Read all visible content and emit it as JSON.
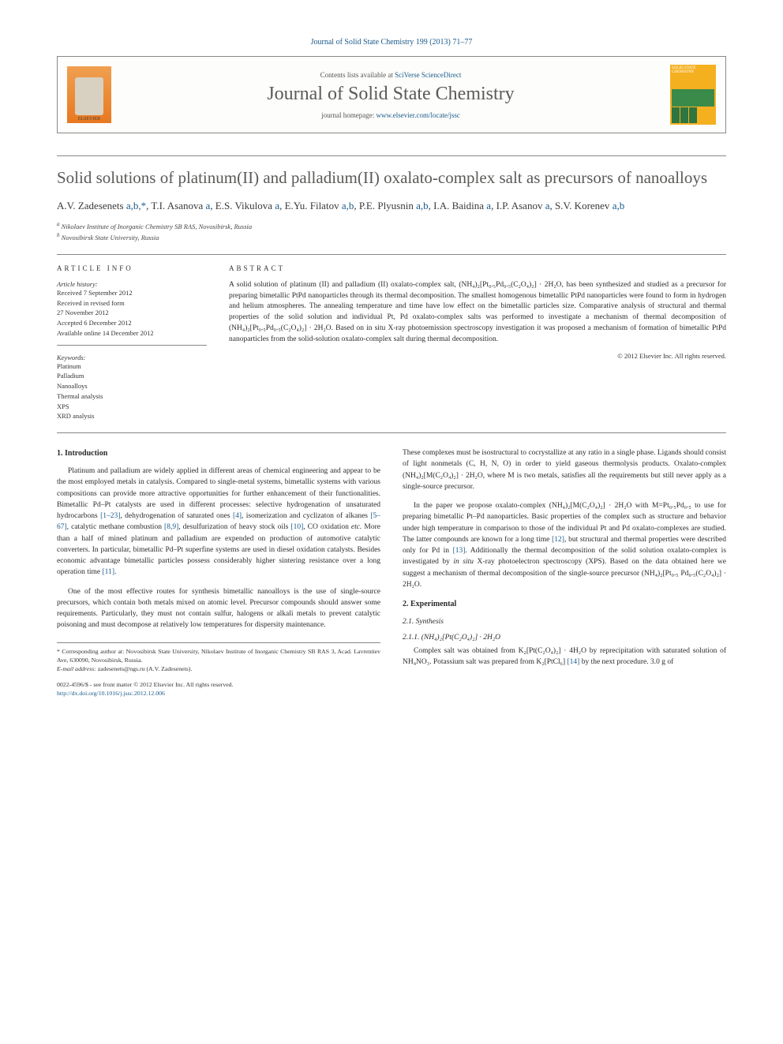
{
  "header": {
    "journal_citation": "Journal of Solid State Chemistry 199 (2013) 71–77",
    "contents_line_pre": "Contents lists available at ",
    "contents_link": "SciVerse ScienceDirect",
    "journal_name": "Journal of Solid State Chemistry",
    "homepage_pre": "journal homepage: ",
    "homepage_link": "www.elsevier.com/locate/jssc",
    "elsevier_label": "ELSEVIER",
    "cover_text": "SOLID STATE CHEMISTRY"
  },
  "title": "Solid solutions of platinum(II) and palladium(II) oxalato-complex salt as precursors of nanoalloys",
  "authors_html": "A.V. Zadesenets <a>a,b,</a><span class='star'>*</span>, T.I. Asanova <a>a</a>, E.S. Vikulova <a>a</a>, E.Yu. Filatov <a>a,b</a>, P.E. Plyusnin <a>a,b</a>, I.A. Baidina <a>a</a>, I.P. Asanov <a>a</a>, S.V. Korenev <a>a,b</a>",
  "affiliations": {
    "a": "Nikolaev Institute of Inorganic Chemistry SB RAS, Novosibirsk, Russia",
    "b": "Novosibirsk State University, Russia"
  },
  "info": {
    "heading": "ARTICLE INFO",
    "history_label": "Article history:",
    "history_items": [
      "Received 7 September 2012",
      "Received in revised form",
      "27 November 2012",
      "Accepted 6 December 2012",
      "Available online 14 December 2012"
    ],
    "keywords_label": "Keywords:",
    "keywords": [
      "Platinum",
      "Palladium",
      "Nanoalloys",
      "Thermal analysis",
      "XPS",
      "XRD analysis"
    ]
  },
  "abstract": {
    "heading": "ABSTRACT",
    "text": "A solid solution of platinum (II) and palladium (II) oxalato-complex salt, (NH₄)₂[Pt₀.₅Pd₀.₅(C₂O₄)₂] · 2H₂O, has been synthesized and studied as a precursor for preparing bimetallic PtPd nanoparticles through its thermal decomposition. The smallest homogenous bimetallic PtPd nanoparticles were found to form in hydrogen and helium atmospheres. The annealing temperature and time have low effect on the bimetallic particles size. Comparative analysis of structural and thermal properties of the solid solution and individual Pt, Pd oxalato-complex salts was performed to investigate a mechanism of thermal decomposition of (NH₄)₂[Pt₀.₅Pd₀.₅(C₂O₄)₂] · 2H₂O. Based on in situ X-ray photoemission spectroscopy investigation it was proposed a mechanism of formation of bimetallic PtPd nanoparticles from the solid-solution oxalato-complex salt during thermal decomposition.",
    "copyright": "© 2012 Elsevier Inc. All rights reserved."
  },
  "introduction": {
    "heading": "1.  Introduction",
    "paragraphs": [
      "Platinum and palladium are widely applied in different areas of chemical engineering and appear to be the most employed metals in catalysis. Compared to single-metal systems, bimetallic systems with various compositions can provide more attractive opportunities for further enhancement of their functionalities. Bimetallic Pd–Pt catalysts are used in different processes: selective hydrogenation of unsaturated hydrocarbons <a>[1–23]</a>, dehydrogenation of saturated ones <a>[4]</a>, isomerization and cyclizaton of alkanes <a>[5–67]</a>, catalytic methane combustion <a>[8,9]</a>, desulfurization of heavy stock oils <a>[10]</a>, CO oxidation <i>etc.</i> More than a half of mined platinum and palladium are expended on production of automotive catalytic converters. In particular, bimetallic Pd–Pt superfine systems are used in diesel oxidation catalysts. Besides economic advantage bimetallic particles possess considerably higher sintering resistance over a long operation time <a>[11]</a>.",
      "One of the most effective routes for synthesis bimetallic nanoalloys is the use of single-source precursors, which contain both metals mixed on atomic level. Precursor compounds should answer some requirements. Particularly, they must not contain sulfur, halogens or alkali metals to prevent catalytic poisoning and must decompose at relatively low temperatures for dispersity maintenance."
    ]
  },
  "col2_intro_cont": [
    "These complexes must be isostructural to cocrystallize at any ratio in a single phase. Ligands should consist of light nonmetals (C, H, N, O) in order to yield gaseous thermolysis products. Oxalato-complex (NH₄)₂[M(C₂O₄)₂] · 2H₂O, where M is two metals, satisfies all the requirements but still never apply as a single-source precursor.",
    "In the paper we propose oxalato-complex (NH₄)₂[M(C₂O₄)₂] · 2H₂O with M=Pt₀.₅Pd₀.₅ to use for preparing bimetallic Pt–Pd nanoparticles. Basic properties of the complex such as structure and behavior under high temperature in comparison to those of the individual Pt and Pd oxalato-complexes are studied. The latter compounds are known for a long time <a>[12]</a>, but structural and thermal properties were described only for Pd in <a>[13]</a>. Additionally the thermal decomposition of the solid solution oxalato-complex is investigated by <i>in situ</i> X-ray photoelectron spectroscopy (XPS). Based on the data obtained here we suggest a mechanism of thermal decomposition of the single-source precursor (NH₄)₂[Pt₀.₅ Pd₀.₅(C₂O₄)₂] · 2H₂O."
  ],
  "experimental": {
    "heading": "2.  Experimental",
    "synthesis_heading": "2.1.  Synthesis",
    "formula_heading": "2.1.1.  (NH₄)₂[Pt(C₂O₄)₂] · 2H₂O",
    "text": "Complex salt was obtained from K₂[Pt(C₂O₄)₂] · 4H₂O by reprecipitation with saturated solution of NH₄NO₃. Potassium salt was prepared from K₂[PtCl₆] <a>[14]</a> by the next procedure. 3.0 g of"
  },
  "footnote": {
    "marker": "*",
    "text": "Corresponding author at: Novosibirsk State University, Nikolaev Institute of Inorganic Chemistry SB RAS 3, Acad. Lavrentiev Ave, 630090, Novosibirsk, Russia.",
    "email_label": "E-mail address:",
    "email": "zadesenets@ngs.ru (A.V. Zadesenets)."
  },
  "footer": {
    "issn_line": "0022-4596/$ - see front matter © 2012 Elsevier Inc. All rights reserved.",
    "doi": "http://dx.doi.org/10.1016/j.jssc.2012.12.006"
  }
}
